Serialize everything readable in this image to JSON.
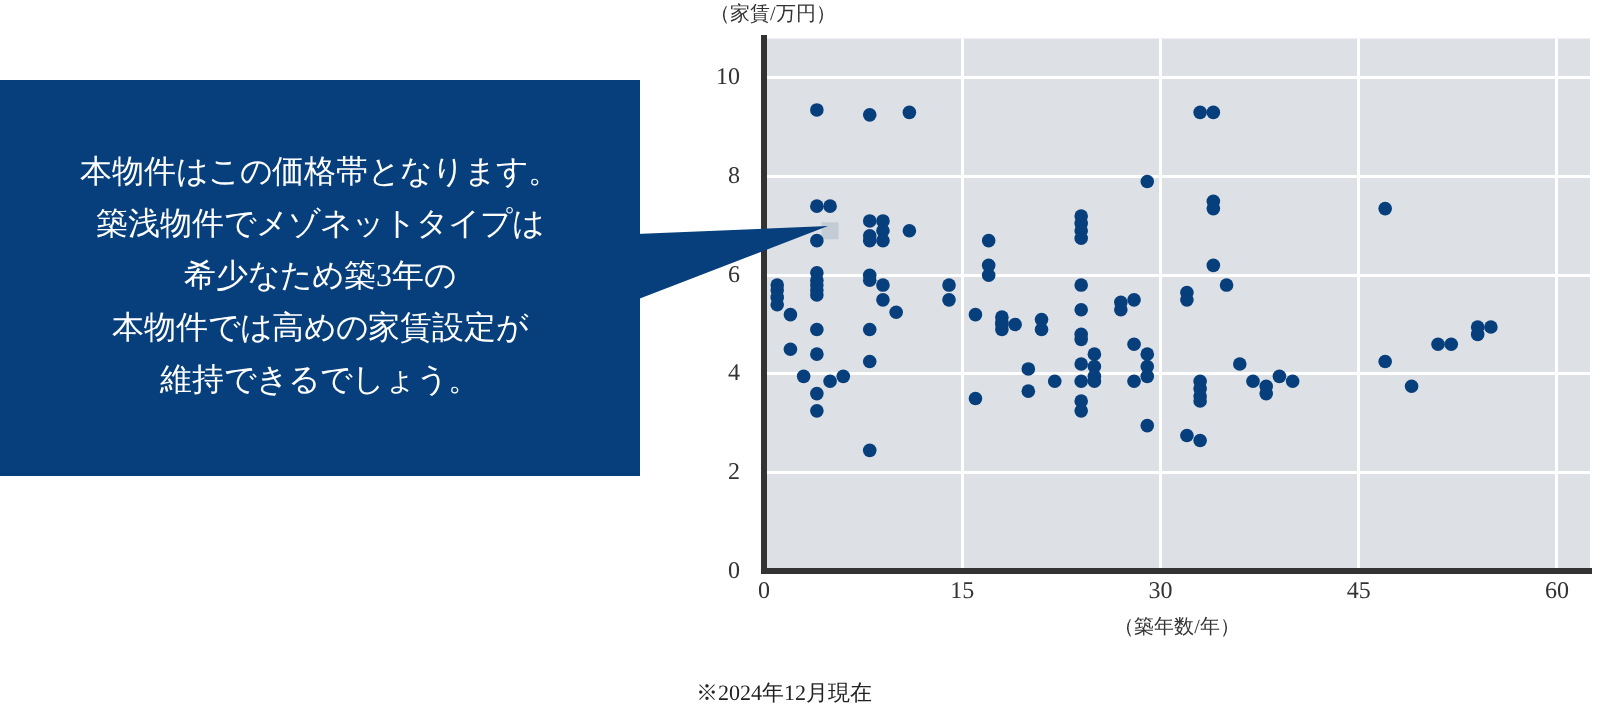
{
  "chart_data": {
    "type": "scatter",
    "xlabel": "（築年数/年）",
    "ylabel": "（家賃/万円）",
    "xlim": [
      0,
      62.5
    ],
    "xticks": [
      0,
      15,
      30,
      45,
      60
    ],
    "ylim": [
      0,
      10.8
    ],
    "yticks": [
      0,
      2,
      4,
      6,
      8,
      10
    ],
    "grid": true,
    "legend": false,
    "series": [
      {
        "color": "#063f7c",
        "marker": "circle",
        "x": [
          1,
          1,
          1,
          1,
          2,
          2,
          3,
          4,
          4,
          4,
          4,
          4,
          4,
          4,
          4,
          4,
          4,
          4,
          4,
          5,
          5,
          6,
          8,
          8,
          8,
          8,
          8,
          8,
          8,
          8,
          8,
          9,
          9,
          9,
          9,
          9,
          10,
          11,
          11,
          14,
          14,
          16,
          16,
          17,
          17,
          17,
          18,
          18,
          18,
          18,
          19,
          20,
          20,
          21,
          21,
          22,
          24,
          24,
          24,
          24,
          24,
          24,
          24,
          24,
          24,
          24,
          24,
          24,
          25,
          25,
          25,
          25,
          27,
          27,
          28,
          28,
          28,
          29,
          29,
          29,
          29,
          29,
          32,
          32,
          32,
          33,
          33,
          33,
          33,
          33,
          33,
          34,
          34,
          34,
          34,
          35,
          36,
          37,
          38,
          38,
          39,
          40,
          47,
          47,
          49,
          51,
          52,
          54,
          54,
          55
        ],
        "values": [
          5.8,
          5.7,
          5.55,
          5.4,
          5.2,
          4.5,
          3.95,
          9.35,
          7.4,
          6.7,
          6.05,
          5.9,
          5.8,
          5.7,
          5.6,
          4.9,
          4.4,
          3.6,
          3.25,
          7.4,
          3.85,
          3.95,
          9.25,
          7.1,
          6.8,
          6.7,
          6.0,
          5.9,
          4.9,
          4.25,
          2.45,
          7.1,
          6.9,
          6.7,
          5.8,
          5.5,
          5.25,
          9.3,
          6.9,
          5.8,
          5.5,
          5.2,
          3.5,
          6.7,
          6.2,
          6.0,
          5.15,
          5.05,
          5.0,
          4.9,
          5.0,
          4.1,
          3.65,
          5.1,
          4.9,
          3.85,
          7.2,
          7.05,
          6.9,
          6.75,
          5.8,
          5.3,
          4.8,
          4.7,
          4.2,
          3.85,
          3.45,
          3.25,
          4.4,
          4.15,
          3.95,
          3.85,
          5.45,
          5.3,
          5.5,
          4.6,
          3.85,
          7.9,
          4.4,
          4.15,
          3.95,
          2.95,
          5.65,
          5.5,
          2.75,
          9.3,
          3.85,
          3.7,
          3.55,
          3.45,
          2.65,
          9.3,
          7.5,
          7.35,
          6.2,
          5.8,
          4.2,
          3.85,
          3.75,
          3.6,
          3.95,
          3.85,
          7.35,
          4.25,
          3.75,
          4.6,
          4.6,
          4.95,
          4.8,
          4.95
        ]
      },
      {
        "color": "#c3ccd5",
        "marker": "square",
        "x": [
          5
        ],
        "values": [
          6.9
        ]
      }
    ],
    "annotations": [
      "本物件はこの価格帯となります。",
      "築浅物件でメゾネットタイプは",
      "希少なため築3年の",
      "本物件では高めの家賃設定が",
      "維持できるでしょう。",
      "※2024年12月現在"
    ]
  }
}
